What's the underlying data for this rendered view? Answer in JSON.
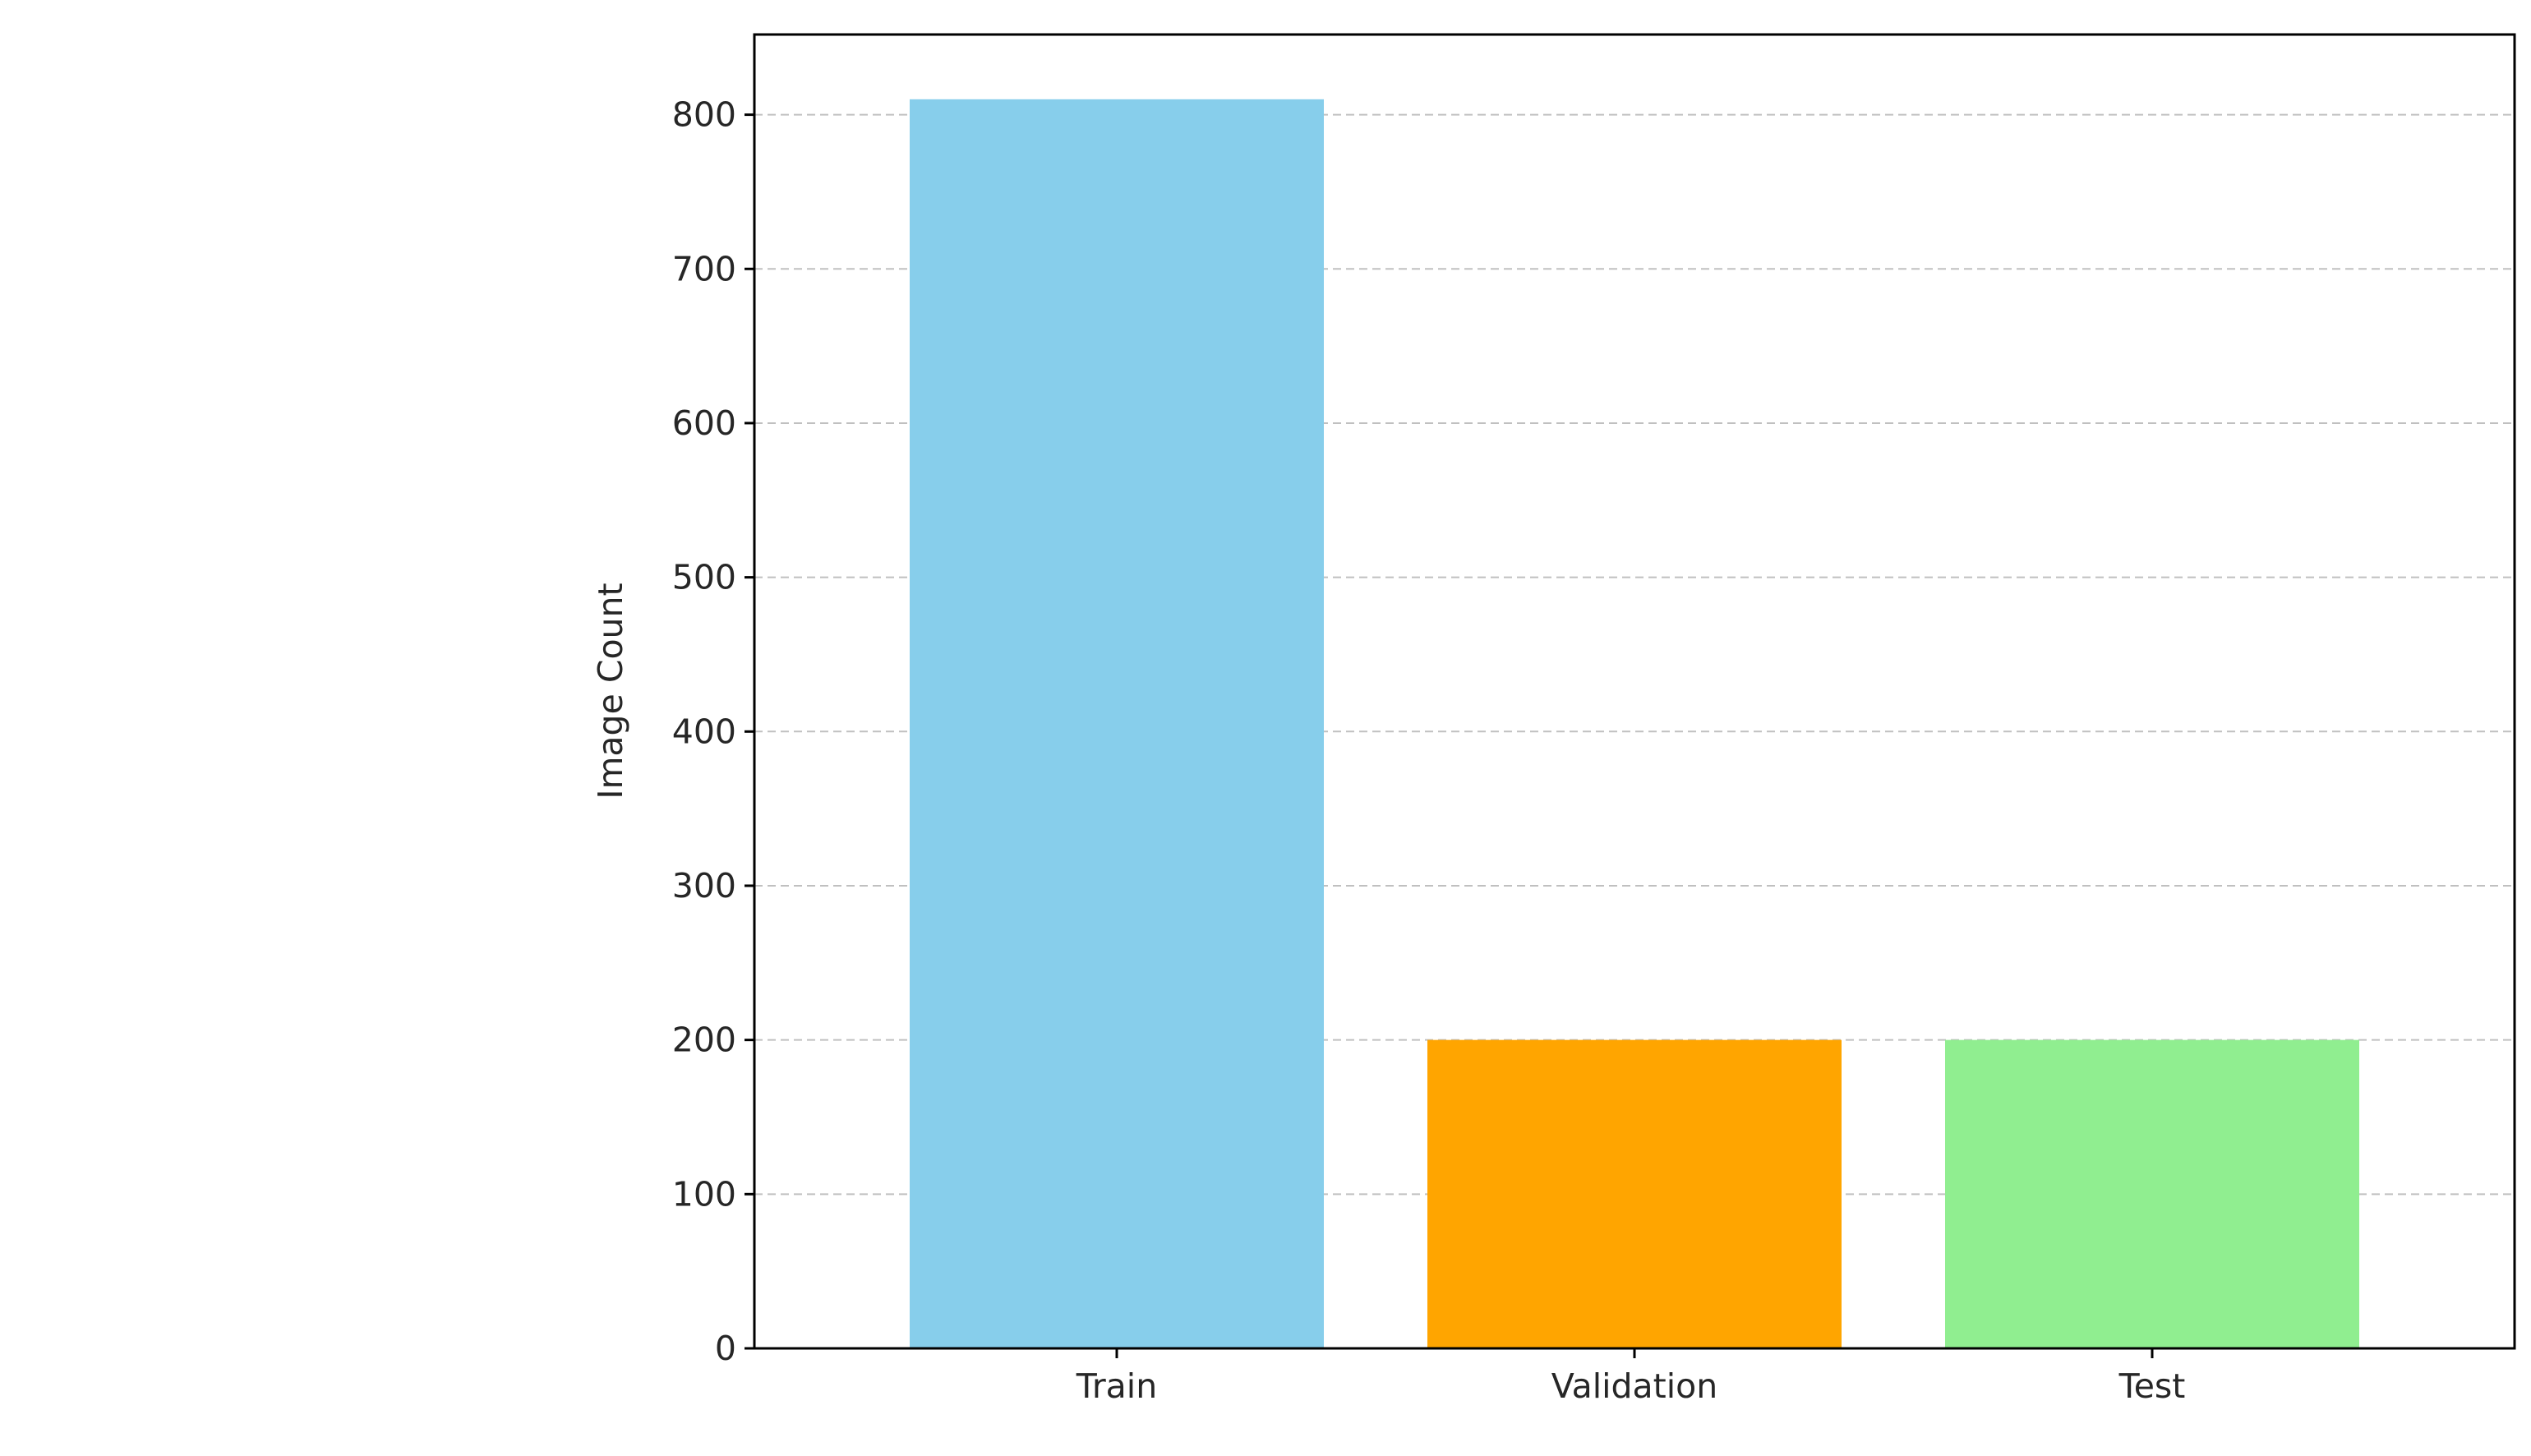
{
  "chart_data": {
    "type": "bar",
    "title": "",
    "xlabel": "",
    "ylabel": "Image Count",
    "categories": [
      "Train",
      "Validation",
      "Test"
    ],
    "values": [
      810,
      200,
      200
    ],
    "bar_colors": [
      "#87ceeb",
      "#ffa500",
      "#90ee90"
    ],
    "ylim": [
      0,
      852
    ],
    "yticks": [
      0,
      100,
      200,
      300,
      400,
      500,
      600,
      700,
      800
    ],
    "grid": {
      "axis": "y",
      "style": "dashed",
      "color": "#c0c0c0"
    },
    "legend": "none"
  }
}
